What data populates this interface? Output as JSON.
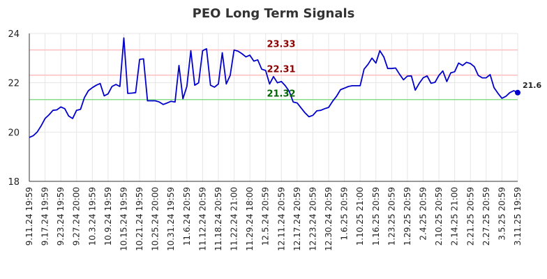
{
  "chart_data": {
    "type": "line",
    "title": "PEO Long Term Signals",
    "xlabel": "",
    "ylabel": "",
    "ylim": [
      18,
      24
    ],
    "yticks": [
      18,
      20,
      22,
      24
    ],
    "grid": true,
    "xtick_labels": [
      "9.11.24 19:59",
      "9.17.24 19:59",
      "9.23.24 19:59",
      "9.27.24 20:00",
      "10.3.24 19:59",
      "10.9.24 19:59",
      "10.15.24 19:59",
      "10.21.24 19:59",
      "10.25.24 20:00",
      "10.31.24 19:59",
      "11.6.24 20:59",
      "11.12.24 20:59",
      "11.18.24 20:59",
      "11.22.24 21:00",
      "11.29.24 18:00",
      "12.5.24 20:59",
      "12.11.24 20:59",
      "12.17.24 20:59",
      "12.23.24 20:59",
      "12.30.24 20:59",
      "1.6.25 20:59",
      "1.10.25 21:00",
      "1.16.25 20:59",
      "1.23.25 20:59",
      "1.29.25 20:59",
      "2.4.25 20:59",
      "2.10.25 20:59",
      "2.14.25 21:00",
      "2.21.25 20:59",
      "2.27.25 20:59",
      "3.5.25 20:59",
      "3.11.25 19:59"
    ],
    "reference_lines": [
      {
        "value": 23.33,
        "label": "23.33",
        "color": "#ffbfbf",
        "label_color": "#8b0000"
      },
      {
        "value": 22.31,
        "label": "22.31",
        "color": "#ffbfbf",
        "label_color": "#8b0000"
      },
      {
        "value": 21.32,
        "label": "21.32",
        "color": "#88dd88",
        "label_color": "#006400"
      }
    ],
    "series": [
      {
        "color": "#0000cc",
        "values": [
          19.78,
          19.85,
          20.0,
          20.25,
          20.55,
          20.7,
          20.88,
          20.9,
          21.02,
          20.95,
          20.65,
          20.55,
          20.88,
          20.92,
          21.4,
          21.68,
          21.8,
          21.9,
          21.97,
          21.47,
          21.55,
          21.85,
          21.93,
          21.85,
          23.82,
          21.57,
          21.58,
          21.6,
          22.95,
          22.97,
          21.27,
          21.27,
          21.27,
          21.22,
          21.12,
          21.18,
          21.25,
          21.22,
          22.7,
          21.35,
          21.85,
          23.3,
          21.9,
          22.0,
          23.3,
          23.38,
          21.9,
          21.82,
          21.95,
          23.22,
          21.95,
          22.3,
          23.33,
          23.28,
          23.18,
          23.05,
          23.12,
          22.88,
          22.93,
          22.55,
          22.5,
          21.95,
          22.25,
          22.0,
          22.05,
          21.88,
          21.65,
          21.22,
          21.18,
          20.98,
          20.78,
          20.62,
          20.68,
          20.86,
          20.88,
          20.95,
          21.0,
          21.25,
          21.45,
          21.72,
          21.78,
          21.85,
          21.88,
          21.88,
          21.88,
          22.55,
          22.75,
          23.0,
          22.8,
          23.3,
          23.05,
          22.58,
          22.58,
          22.6,
          22.35,
          22.12,
          22.27,
          22.28,
          21.7,
          21.98,
          22.2,
          22.28,
          21.98,
          22.02,
          22.3,
          22.48,
          22.05,
          22.4,
          22.45,
          22.8,
          22.7,
          22.83,
          22.78,
          22.65,
          22.3,
          22.2,
          22.2,
          22.33,
          21.8,
          21.57,
          21.37,
          21.45,
          21.6,
          21.68,
          21.6
        ]
      }
    ],
    "last_value_label": "21.6"
  }
}
